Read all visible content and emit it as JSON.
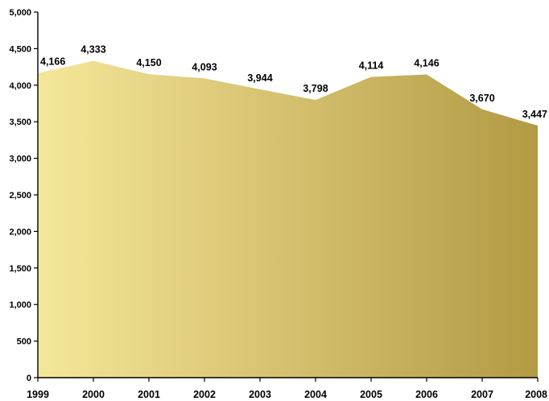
{
  "chart_data": {
    "type": "area",
    "title": "",
    "xlabel": "",
    "ylabel": "",
    "categories": [
      "1999",
      "2000",
      "2001",
      "2002",
      "2003",
      "2004",
      "2005",
      "2006",
      "2007",
      "2008"
    ],
    "values": [
      4166,
      4333,
      4150,
      4093,
      3944,
      3798,
      4114,
      4146,
      3670,
      3447
    ],
    "value_labels": [
      "4,166",
      "4,333",
      "4,150",
      "4,093",
      "3,944",
      "3,798",
      "4,114",
      "4,146",
      "3,670",
      "3,447"
    ],
    "ylim": [
      0,
      5000
    ],
    "y_ticks": [
      0,
      500,
      1000,
      1500,
      2000,
      2500,
      3000,
      3500,
      4000,
      4500,
      5000
    ],
    "y_tick_labels": [
      "0",
      "500",
      "1,000",
      "1,500",
      "2,000",
      "2,500",
      "3,000",
      "3,500",
      "4,000",
      "4,500",
      "5,000"
    ],
    "grid": false,
    "legend": "none",
    "fill_gradient": [
      "#f5e79a",
      "#b39a43"
    ]
  }
}
